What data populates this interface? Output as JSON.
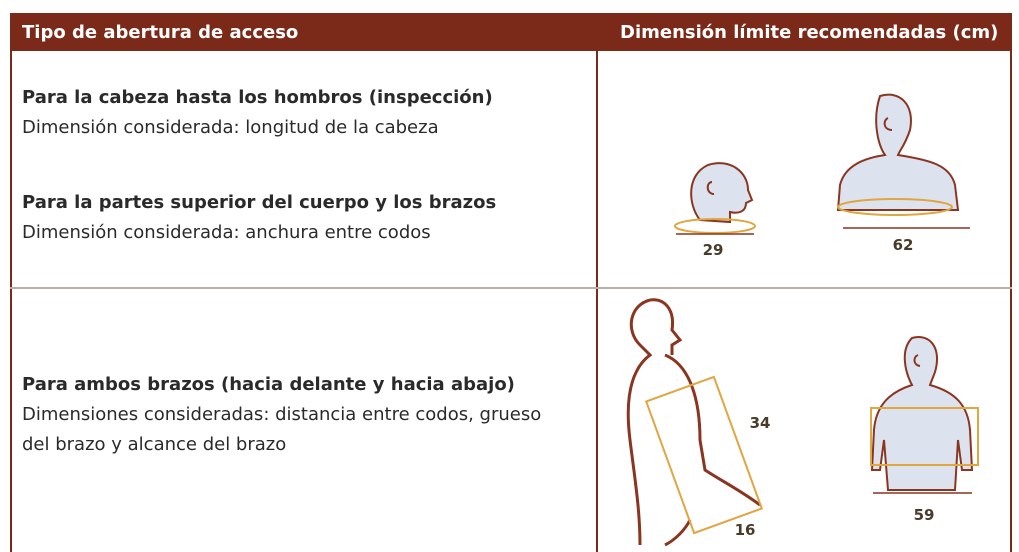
{
  "table": {
    "header": [
      "Tipo de abertura de acceso",
      "Dimensión límite recomendadas (cm)"
    ],
    "rows": [
      {
        "items": [
          {
            "title": "Para la cabeza hasta los hombros (inspección)",
            "description": "Dimensión considerada: longitud de la cabeza"
          },
          {
            "title": "Para la partes superior del cuerpo y los brazos",
            "description": "Dimensión considerada: anchura entre codos"
          }
        ],
        "figure_labels": [
          "29",
          "62"
        ]
      },
      {
        "items": [
          {
            "title": "Para ambos brazos (hacia delante y hacia abajo)",
            "description": "Dimensiones consideradas: distancia entre codos, grueso del brazo y alcance del brazo"
          }
        ],
        "figure_labels": [
          "34",
          "16",
          "59"
        ]
      }
    ]
  }
}
